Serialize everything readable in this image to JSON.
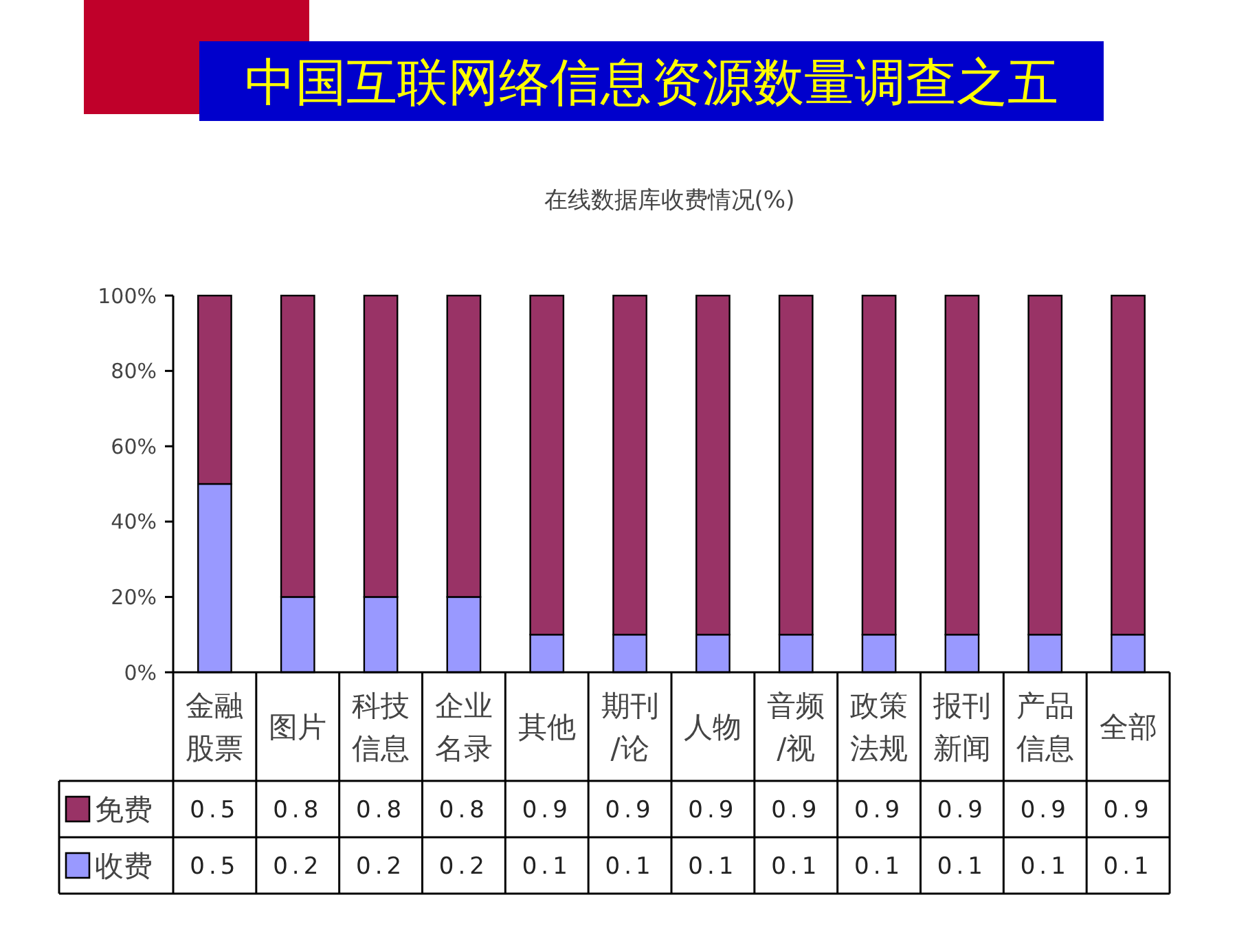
{
  "chart_data": {
    "type": "bar",
    "title": "中国互联网络信息资源数量调查之五",
    "subtitle": "在线数据库收费情况(%)",
    "categories": [
      "金融股票",
      "图片",
      "科技信息",
      "企业名录",
      "其他",
      "期刊/论",
      "人物",
      "音频/视",
      "政策法规",
      "报刊新闻",
      "产品信息",
      "全部"
    ],
    "series": [
      {
        "name": "收费",
        "color": "#9999ff",
        "values": [
          0.5,
          0.2,
          0.2,
          0.2,
          0.1,
          0.1,
          0.1,
          0.1,
          0.1,
          0.1,
          0.1,
          0.1
        ]
      },
      {
        "name": "免费",
        "color": "#993366",
        "values": [
          0.5,
          0.8,
          0.8,
          0.8,
          0.9,
          0.9,
          0.9,
          0.9,
          0.9,
          0.9,
          0.9,
          0.9
        ]
      }
    ],
    "stacked": true,
    "ylim": [
      0,
      1
    ],
    "yticks": [
      {
        "value": 0,
        "label": "0%"
      },
      {
        "value": 0.2,
        "label": "20%"
      },
      {
        "value": 0.4,
        "label": "40%"
      },
      {
        "value": 0.6,
        "label": "60%"
      },
      {
        "value": 0.8,
        "label": "80%"
      },
      {
        "value": 1,
        "label": "100%"
      }
    ],
    "data_labels": true,
    "legend": "bottom"
  }
}
